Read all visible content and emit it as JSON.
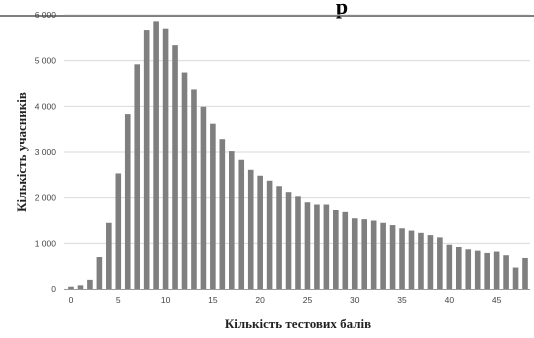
{
  "header": {
    "title_fragment": "p"
  },
  "chart_data": {
    "type": "bar",
    "xlabel": "Кількість тестових балів",
    "ylabel": "Кількість учасників",
    "ylim": [
      0,
      6000
    ],
    "yticks": [
      0,
      1000,
      2000,
      3000,
      4000,
      5000,
      6000
    ],
    "ytick_labels": [
      "0",
      "1 000",
      "2 000",
      "3 000",
      "4 000",
      "5 000",
      "6 000"
    ],
    "xlim": [
      0,
      48
    ],
    "xticks": [
      0,
      5,
      10,
      15,
      20,
      25,
      30,
      35,
      40,
      45
    ],
    "xtick_labels": [
      "0",
      "5",
      "10",
      "15",
      "20",
      "25",
      "30",
      "35",
      "40",
      "45"
    ],
    "grid": "horizontal",
    "bar_color": "#7f7f7f",
    "x": [
      0,
      1,
      2,
      3,
      4,
      5,
      6,
      7,
      8,
      9,
      10,
      11,
      12,
      13,
      14,
      15,
      16,
      17,
      18,
      19,
      20,
      21,
      22,
      23,
      24,
      25,
      26,
      27,
      28,
      29,
      30,
      31,
      32,
      33,
      34,
      35,
      36,
      37,
      38,
      39,
      40,
      41,
      42,
      43,
      44,
      45,
      46,
      47,
      48
    ],
    "values": [
      50,
      80,
      200,
      700,
      1450,
      2530,
      3830,
      4920,
      5670,
      5860,
      5700,
      5340,
      4740,
      4370,
      3990,
      3620,
      3280,
      3020,
      2830,
      2610,
      2480,
      2370,
      2250,
      2120,
      2030,
      1900,
      1850,
      1850,
      1730,
      1690,
      1550,
      1530,
      1500,
      1450,
      1400,
      1330,
      1280,
      1230,
      1180,
      1130,
      970,
      920,
      870,
      840,
      790,
      820,
      740,
      470,
      680
    ]
  }
}
